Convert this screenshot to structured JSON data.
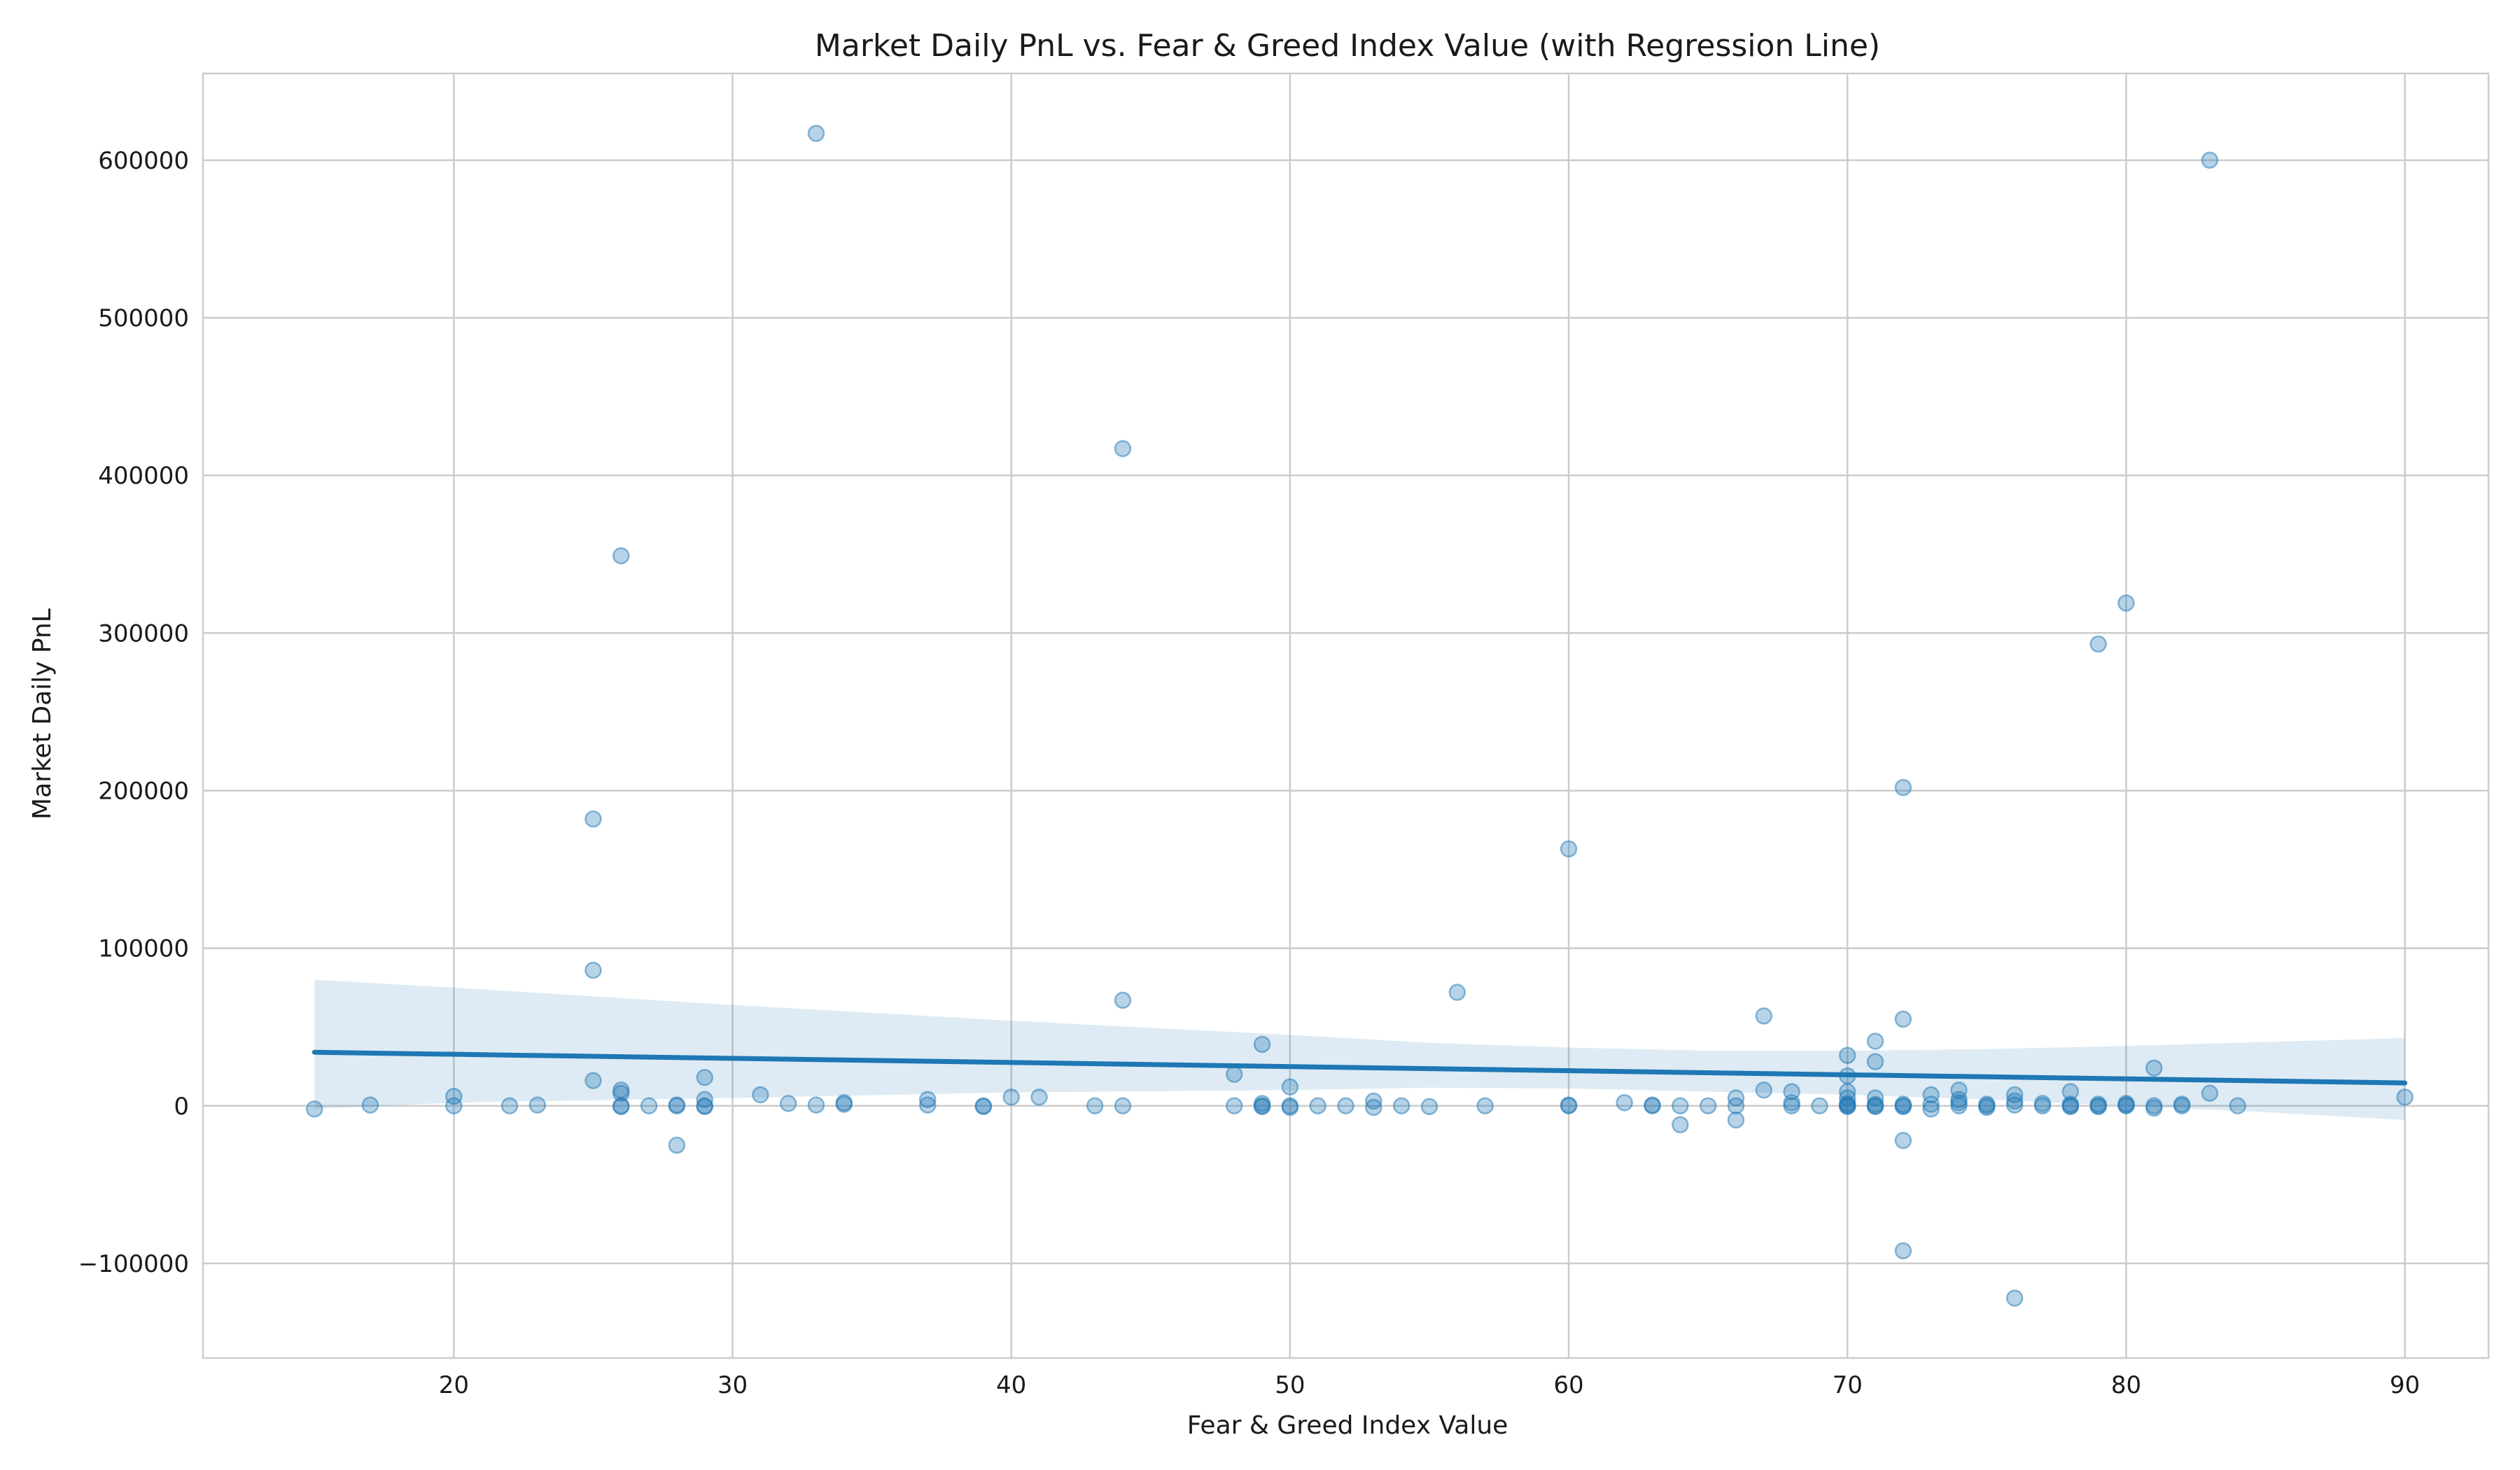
{
  "chart_data": {
    "type": "scatter",
    "title": "Market Daily PnL vs. Fear & Greed Index Value (with Regression Line)",
    "xlabel": "Fear & Greed Index Value",
    "ylabel": "Market Daily PnL",
    "xlim": [
      11,
      93
    ],
    "ylim": [
      -160000,
      655000
    ],
    "xticks": [
      20,
      30,
      40,
      50,
      60,
      70,
      80,
      90
    ],
    "yticks": [
      -100000,
      0,
      100000,
      200000,
      300000,
      400000,
      500000,
      600000
    ],
    "xtick_labels": [
      "20",
      "30",
      "40",
      "50",
      "60",
      "70",
      "80",
      "90"
    ],
    "ytick_labels": [
      "−100000",
      "0",
      "100000",
      "200000",
      "300000",
      "400000",
      "500000",
      "600000"
    ],
    "grid": true,
    "point_color": "#1f77b4",
    "regression": {
      "x": [
        15,
        90
      ],
      "y": [
        34000,
        14500
      ],
      "ci_x": [
        15,
        20,
        30,
        40,
        50,
        55,
        60,
        65,
        70,
        75,
        80,
        85,
        90
      ],
      "ci_upper": [
        80000,
        75000,
        64000,
        54000,
        45000,
        40000,
        37000,
        35000,
        35000,
        36000,
        38000,
        40500,
        43000
      ],
      "ci_lower": [
        -2000,
        2000,
        5000,
        8500,
        10000,
        11500,
        11000,
        9000,
        7000,
        4000,
        0,
        -4000,
        -9000
      ]
    },
    "points": [
      {
        "x": 15,
        "y": -2000
      },
      {
        "x": 17,
        "y": 500
      },
      {
        "x": 20,
        "y": 6000
      },
      {
        "x": 20,
        "y": 0
      },
      {
        "x": 22,
        "y": 0
      },
      {
        "x": 23,
        "y": 500
      },
      {
        "x": 25,
        "y": 182000
      },
      {
        "x": 25,
        "y": 86000
      },
      {
        "x": 25,
        "y": 16000
      },
      {
        "x": 26,
        "y": 349000
      },
      {
        "x": 26,
        "y": 10000
      },
      {
        "x": 26,
        "y": 8000
      },
      {
        "x": 26,
        "y": 0
      },
      {
        "x": 26,
        "y": -500
      },
      {
        "x": 27,
        "y": 0
      },
      {
        "x": 28,
        "y": 0
      },
      {
        "x": 28,
        "y": 500
      },
      {
        "x": 28,
        "y": -25000
      },
      {
        "x": 29,
        "y": 18000
      },
      {
        "x": 29,
        "y": 4000
      },
      {
        "x": 29,
        "y": 0
      },
      {
        "x": 29,
        "y": -500
      },
      {
        "x": 31,
        "y": 7000
      },
      {
        "x": 32,
        "y": 1500
      },
      {
        "x": 33,
        "y": 617000
      },
      {
        "x": 33,
        "y": 500
      },
      {
        "x": 34,
        "y": 2000
      },
      {
        "x": 34,
        "y": 1000
      },
      {
        "x": 37,
        "y": 4000
      },
      {
        "x": 37,
        "y": 500
      },
      {
        "x": 39,
        "y": 0
      },
      {
        "x": 39,
        "y": -500
      },
      {
        "x": 40,
        "y": 5500
      },
      {
        "x": 41,
        "y": 5500
      },
      {
        "x": 43,
        "y": 0
      },
      {
        "x": 44,
        "y": 417000
      },
      {
        "x": 44,
        "y": 67000
      },
      {
        "x": 44,
        "y": 0
      },
      {
        "x": 48,
        "y": 20000
      },
      {
        "x": 48,
        "y": 0
      },
      {
        "x": 49,
        "y": 39000
      },
      {
        "x": 49,
        "y": 1500
      },
      {
        "x": 49,
        "y": 0
      },
      {
        "x": 49,
        "y": -500
      },
      {
        "x": 50,
        "y": 12000
      },
      {
        "x": 50,
        "y": 0
      },
      {
        "x": 50,
        "y": -1000
      },
      {
        "x": 51,
        "y": 0
      },
      {
        "x": 52,
        "y": 0
      },
      {
        "x": 53,
        "y": 3000
      },
      {
        "x": 53,
        "y": -1000
      },
      {
        "x": 54,
        "y": 0
      },
      {
        "x": 55,
        "y": -500
      },
      {
        "x": 56,
        "y": 72000
      },
      {
        "x": 57,
        "y": 0
      },
      {
        "x": 60,
        "y": 163000
      },
      {
        "x": 60,
        "y": 500
      },
      {
        "x": 60,
        "y": 0
      },
      {
        "x": 62,
        "y": 2000
      },
      {
        "x": 63,
        "y": 500
      },
      {
        "x": 63,
        "y": 0
      },
      {
        "x": 64,
        "y": 0
      },
      {
        "x": 64,
        "y": -12000
      },
      {
        "x": 65,
        "y": 0
      },
      {
        "x": 66,
        "y": 5000
      },
      {
        "x": 66,
        "y": 0
      },
      {
        "x": 66,
        "y": -9000
      },
      {
        "x": 67,
        "y": 57000
      },
      {
        "x": 67,
        "y": 10000
      },
      {
        "x": 68,
        "y": 9000
      },
      {
        "x": 68,
        "y": 2000
      },
      {
        "x": 68,
        "y": 0
      },
      {
        "x": 69,
        "y": 0
      },
      {
        "x": 70,
        "y": 32000
      },
      {
        "x": 70,
        "y": 19000
      },
      {
        "x": 70,
        "y": 9000
      },
      {
        "x": 70,
        "y": 5000
      },
      {
        "x": 70,
        "y": 1500
      },
      {
        "x": 70,
        "y": 500
      },
      {
        "x": 70,
        "y": 0
      },
      {
        "x": 70,
        "y": -500
      },
      {
        "x": 71,
        "y": 41000
      },
      {
        "x": 71,
        "y": 28000
      },
      {
        "x": 71,
        "y": 5000
      },
      {
        "x": 71,
        "y": 1000
      },
      {
        "x": 71,
        "y": 0
      },
      {
        "x": 71,
        "y": -500
      },
      {
        "x": 72,
        "y": 202000
      },
      {
        "x": 72,
        "y": 55000
      },
      {
        "x": 72,
        "y": 1000
      },
      {
        "x": 72,
        "y": 0
      },
      {
        "x": 72,
        "y": -500
      },
      {
        "x": 72,
        "y": -22000
      },
      {
        "x": 72,
        "y": -92000
      },
      {
        "x": 73,
        "y": 7000
      },
      {
        "x": 73,
        "y": 1000
      },
      {
        "x": 73,
        "y": -2000
      },
      {
        "x": 74,
        "y": 10000
      },
      {
        "x": 74,
        "y": 4000
      },
      {
        "x": 74,
        "y": 2000
      },
      {
        "x": 74,
        "y": 0
      },
      {
        "x": 75,
        "y": 1000
      },
      {
        "x": 75,
        "y": 0
      },
      {
        "x": 75,
        "y": -1000
      },
      {
        "x": 76,
        "y": 7000
      },
      {
        "x": 76,
        "y": 3000
      },
      {
        "x": 76,
        "y": 500
      },
      {
        "x": 76,
        "y": -122000
      },
      {
        "x": 77,
        "y": 1500
      },
      {
        "x": 77,
        "y": 0
      },
      {
        "x": 78,
        "y": 9000
      },
      {
        "x": 78,
        "y": 1000
      },
      {
        "x": 78,
        "y": 0
      },
      {
        "x": 78,
        "y": -500
      },
      {
        "x": 79,
        "y": 293000
      },
      {
        "x": 79,
        "y": 1000
      },
      {
        "x": 79,
        "y": 0
      },
      {
        "x": 79,
        "y": -500
      },
      {
        "x": 80,
        "y": 319000
      },
      {
        "x": 80,
        "y": 1500
      },
      {
        "x": 80,
        "y": 500
      },
      {
        "x": 80,
        "y": 0
      },
      {
        "x": 81,
        "y": 24000
      },
      {
        "x": 81,
        "y": 0
      },
      {
        "x": 81,
        "y": -1500
      },
      {
        "x": 82,
        "y": 1000
      },
      {
        "x": 82,
        "y": 0
      },
      {
        "x": 83,
        "y": 600000
      },
      {
        "x": 83,
        "y": 8000
      },
      {
        "x": 84,
        "y": 0
      },
      {
        "x": 90,
        "y": 5500
      }
    ]
  }
}
